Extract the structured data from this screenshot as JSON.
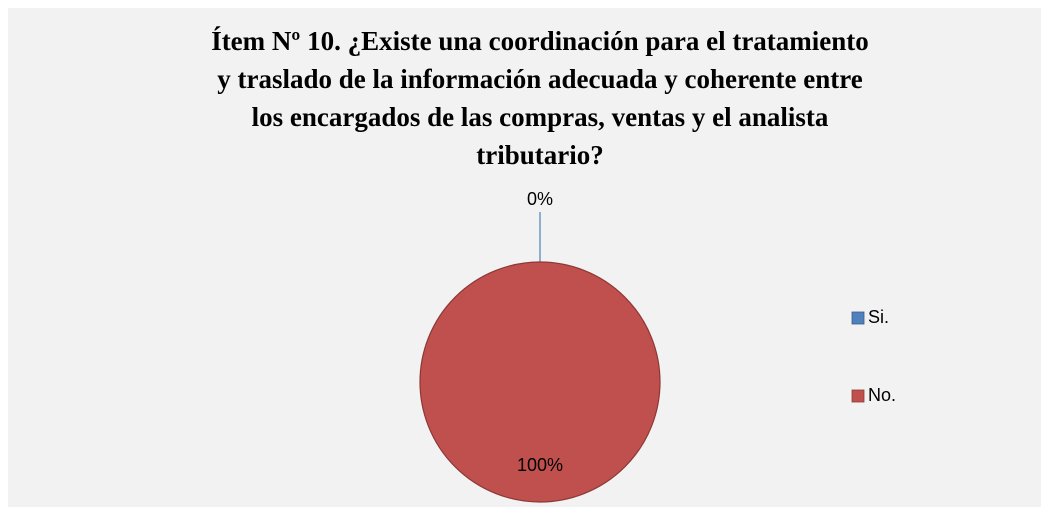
{
  "chart_data": {
    "type": "pie",
    "title": "Ítem Nº 10. ¿Existe una coordinación para el tratamiento y traslado de la información adecuada y coherente entre los encargados de las compras, ventas y el analista tributario?",
    "categories": [
      "Si.",
      "No."
    ],
    "values": [
      0,
      100
    ],
    "value_labels": [
      "0%",
      "100%"
    ],
    "colors": [
      "#4f81bd",
      "#c0504d"
    ],
    "legend": "right"
  }
}
